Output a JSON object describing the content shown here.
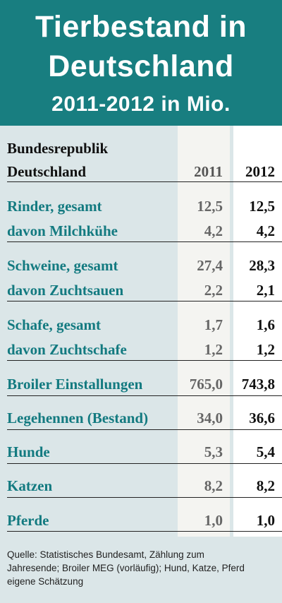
{
  "header": {
    "title_line1": "Tierbestand in",
    "title_line2": "Deutschland",
    "subtitle": "2011-2012 in Mio."
  },
  "chart_data": {
    "type": "table",
    "row_header_line1": "Bundesrepublik",
    "row_header_line2": "Deutschland",
    "columns": [
      "2011",
      "2012"
    ],
    "rows": [
      {
        "label": "Rinder, gesamt",
        "v2011": "12,5",
        "v2012": "12,5"
      },
      {
        "label": "davon Milchkühe",
        "v2011": "4,2",
        "v2012": "4,2"
      },
      {
        "label": "Schweine, gesamt",
        "v2011": "27,4",
        "v2012": "28,3"
      },
      {
        "label": "davon Zuchtsauen",
        "v2011": "2,2",
        "v2012": "2,1"
      },
      {
        "label": "Schafe, gesamt",
        "v2011": "1,7",
        "v2012": "1,6"
      },
      {
        "label": "davon Zuchtschafe",
        "v2011": "1,2",
        "v2012": "1,2"
      },
      {
        "label": "Broiler Einstallungen",
        "v2011": "765,0",
        "v2012": "743,8"
      },
      {
        "label": "Legehennen (Bestand)",
        "v2011": "34,0",
        "v2012": "36,6"
      },
      {
        "label": "Hunde",
        "v2011": "5,3",
        "v2012": "5,4"
      },
      {
        "label": "Katzen",
        "v2011": "8,2",
        "v2012": "8,2"
      },
      {
        "label": "Pferde",
        "v2011": "1,0",
        "v2012": "1,0"
      }
    ]
  },
  "footer": {
    "line1": "Quelle: Statistisches Bundesamt, Zählung zum",
    "line2": "Jahresende; Broiler MEG (vorläufig); Hund, Katze, Pferd",
    "line3": "eigene Schätzung"
  },
  "colors": {
    "header_bg": "#187e80",
    "label_text": "#137a80",
    "page_bg": "#dbe6e8"
  }
}
